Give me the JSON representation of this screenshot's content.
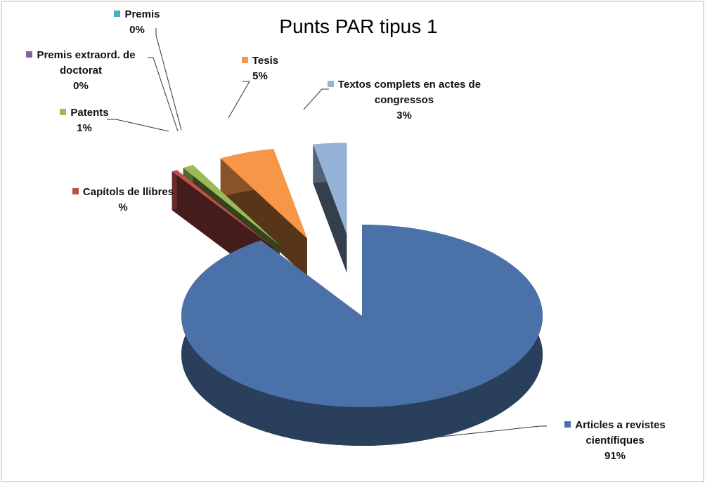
{
  "chart_data": {
    "type": "pie3d",
    "title": "Punts PAR tipus 1",
    "categories": [
      "Articles a revistes científiques",
      "Capítols de llibres",
      "Patents",
      "Premis extraord. de doctorat",
      "Premis",
      "Tesis",
      "Textos complets en actes de congressos"
    ],
    "values": [
      91,
      0.5,
      1,
      0,
      0,
      5,
      3
    ],
    "value_labels": [
      "91%",
      "%",
      "1%",
      "0%",
      "0%",
      "5%",
      "3%"
    ],
    "colors": [
      "#4a72a8",
      "#c0504d",
      "#9bbb59",
      "#8064a2",
      "#4bacc6",
      "#f79646",
      "#95b3d7"
    ]
  }
}
